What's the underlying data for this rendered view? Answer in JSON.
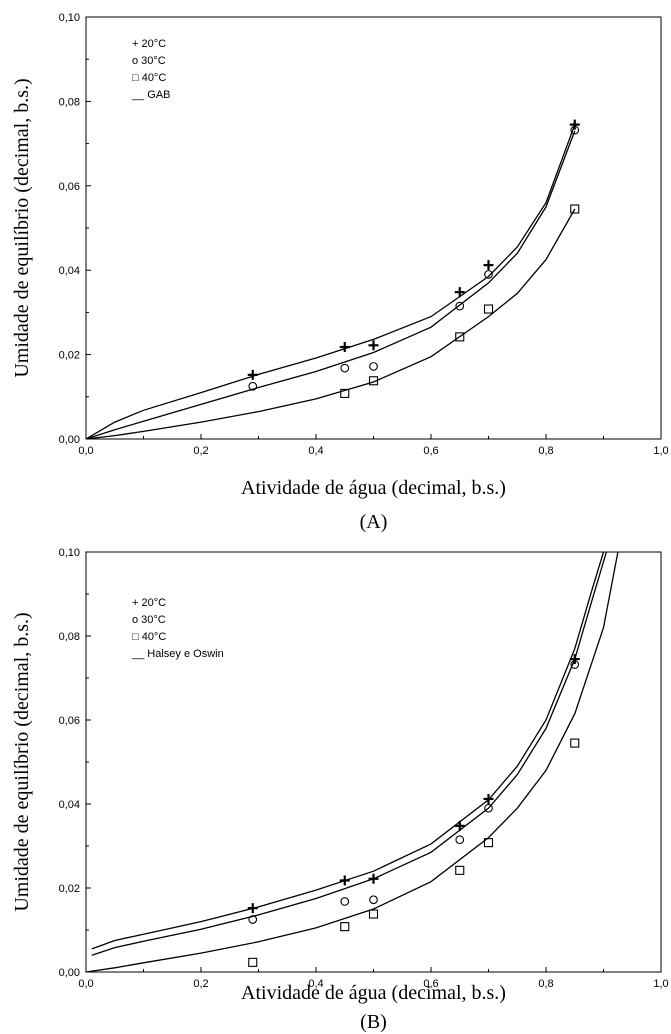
{
  "chart_data": [
    {
      "type": "scatter",
      "panel_label": "(A)",
      "xlabel": "Atividade de água (decimal, b.s.)",
      "ylabel": "Umidade de equilíbrio (decimal, b.s.)",
      "xlim": [
        0,
        1
      ],
      "ylim": [
        0,
        0.1
      ],
      "x_ticks": [
        "0,0",
        "0,2",
        "0,4",
        "0,6",
        "0,8",
        "1,0"
      ],
      "y_ticks": [
        "0,00",
        "0,02",
        "0,04",
        "0,06",
        "0,08",
        "0,10"
      ],
      "legend": [
        {
          "symbol": "+",
          "label": "20°C"
        },
        {
          "symbol": "o",
          "label": "30°C"
        },
        {
          "symbol": "□",
          "label": "40°C"
        },
        {
          "symbol": "__",
          "label": "GAB"
        }
      ],
      "legend_position": "top-left",
      "series": [
        {
          "marker": "plus",
          "points": [
            [
              0.29,
              0.0152
            ],
            [
              0.45,
              0.0218
            ],
            [
              0.5,
              0.0222
            ],
            [
              0.65,
              0.0348
            ],
            [
              0.7,
              0.0412
            ],
            [
              0.85,
              0.0745
            ]
          ]
        },
        {
          "marker": "circle",
          "points": [
            [
              0.29,
              0.0125
            ],
            [
              0.45,
              0.0168
            ],
            [
              0.5,
              0.0172
            ],
            [
              0.65,
              0.0315
            ],
            [
              0.7,
              0.039
            ],
            [
              0.85,
              0.0732
            ]
          ]
        },
        {
          "marker": "square",
          "points": [
            [
              0.45,
              0.0108
            ],
            [
              0.5,
              0.0138
            ],
            [
              0.65,
              0.0242
            ],
            [
              0.7,
              0.0308
            ],
            [
              0.85,
              0.0545
            ]
          ]
        }
      ],
      "fit_curves": [
        {
          "points": [
            [
              0.0,
              0.0
            ],
            [
              0.05,
              0.004
            ],
            [
              0.1,
              0.0068
            ],
            [
              0.2,
              0.011
            ],
            [
              0.3,
              0.0153
            ],
            [
              0.4,
              0.0192
            ],
            [
              0.5,
              0.0236
            ],
            [
              0.6,
              0.029
            ],
            [
              0.7,
              0.0385
            ],
            [
              0.75,
              0.0455
            ],
            [
              0.8,
              0.056
            ],
            [
              0.85,
              0.0745
            ]
          ]
        },
        {
          "points": [
            [
              0.0,
              0.0
            ],
            [
              0.05,
              0.0022
            ],
            [
              0.1,
              0.0042
            ],
            [
              0.2,
              0.0082
            ],
            [
              0.3,
              0.0122
            ],
            [
              0.4,
              0.016
            ],
            [
              0.5,
              0.0205
            ],
            [
              0.6,
              0.0265
            ],
            [
              0.7,
              0.037
            ],
            [
              0.75,
              0.044
            ],
            [
              0.8,
              0.055
            ],
            [
              0.85,
              0.073
            ]
          ]
        },
        {
          "points": [
            [
              0.0,
              0.0
            ],
            [
              0.05,
              0.0008
            ],
            [
              0.1,
              0.0018
            ],
            [
              0.2,
              0.004
            ],
            [
              0.3,
              0.0065
            ],
            [
              0.4,
              0.0095
            ],
            [
              0.5,
              0.0135
            ],
            [
              0.6,
              0.0195
            ],
            [
              0.7,
              0.029
            ],
            [
              0.75,
              0.0345
            ],
            [
              0.8,
              0.0425
            ],
            [
              0.85,
              0.0545
            ]
          ]
        }
      ]
    },
    {
      "type": "scatter",
      "panel_label": "(B)",
      "xlabel": "Atividade de água (decimal, b.s.)",
      "ylabel": "Umidade de equilíbrio (decimal, b.s.)",
      "xlim": [
        0,
        1
      ],
      "ylim": [
        0,
        0.1
      ],
      "x_ticks": [
        "0,0",
        "0,2",
        "0,4",
        "0,6",
        "0,8",
        "1,0"
      ],
      "y_ticks": [
        "0,00",
        "0,02",
        "0,04",
        "0,06",
        "0,08",
        "0,10"
      ],
      "legend": [
        {
          "symbol": "+",
          "label": "20°C"
        },
        {
          "symbol": "o",
          "label": "30°C"
        },
        {
          "symbol": "□",
          "label": "40°C"
        },
        {
          "symbol": "__",
          "label": "Halsey e Oswin"
        }
      ],
      "legend_position": "top-left",
      "series": [
        {
          "marker": "plus",
          "points": [
            [
              0.29,
              0.0152
            ],
            [
              0.45,
              0.0218
            ],
            [
              0.5,
              0.0222
            ],
            [
              0.65,
              0.0348
            ],
            [
              0.7,
              0.0412
            ],
            [
              0.85,
              0.0745
            ]
          ]
        },
        {
          "marker": "circle",
          "points": [
            [
              0.29,
              0.0125
            ],
            [
              0.45,
              0.0168
            ],
            [
              0.5,
              0.0172
            ],
            [
              0.65,
              0.0315
            ],
            [
              0.7,
              0.039
            ],
            [
              0.85,
              0.0732
            ]
          ]
        },
        {
          "marker": "square",
          "points": [
            [
              0.29,
              0.0023
            ],
            [
              0.45,
              0.0108
            ],
            [
              0.5,
              0.0138
            ],
            [
              0.65,
              0.0242
            ],
            [
              0.7,
              0.0308
            ],
            [
              0.85,
              0.0545
            ]
          ]
        }
      ],
      "fit_curves": [
        {
          "points": [
            [
              0.01,
              0.0055
            ],
            [
              0.05,
              0.0075
            ],
            [
              0.1,
              0.009
            ],
            [
              0.2,
              0.012
            ],
            [
              0.3,
              0.0155
            ],
            [
              0.4,
              0.0195
            ],
            [
              0.5,
              0.024
            ],
            [
              0.6,
              0.0305
            ],
            [
              0.7,
              0.041
            ],
            [
              0.75,
              0.049
            ],
            [
              0.8,
              0.06
            ],
            [
              0.85,
              0.077
            ],
            [
              0.88,
              0.091
            ],
            [
              0.9,
              0.1
            ]
          ]
        },
        {
          "points": [
            [
              0.01,
              0.004
            ],
            [
              0.05,
              0.0058
            ],
            [
              0.1,
              0.0073
            ],
            [
              0.2,
              0.0102
            ],
            [
              0.3,
              0.0136
            ],
            [
              0.4,
              0.0175
            ],
            [
              0.5,
              0.0222
            ],
            [
              0.6,
              0.0285
            ],
            [
              0.7,
              0.039
            ],
            [
              0.75,
              0.047
            ],
            [
              0.8,
              0.058
            ],
            [
              0.85,
              0.0745
            ],
            [
              0.88,
              0.0885
            ],
            [
              0.905,
              0.1
            ]
          ]
        },
        {
          "points": [
            [
              0.0,
              0.0
            ],
            [
              0.05,
              0.001
            ],
            [
              0.1,
              0.0022
            ],
            [
              0.2,
              0.0045
            ],
            [
              0.3,
              0.0072
            ],
            [
              0.4,
              0.0105
            ],
            [
              0.5,
              0.015
            ],
            [
              0.6,
              0.0215
            ],
            [
              0.7,
              0.032
            ],
            [
              0.75,
              0.039
            ],
            [
              0.8,
              0.048
            ],
            [
              0.85,
              0.0615
            ],
            [
              0.9,
              0.082
            ],
            [
              0.925,
              0.1
            ]
          ]
        }
      ]
    }
  ]
}
